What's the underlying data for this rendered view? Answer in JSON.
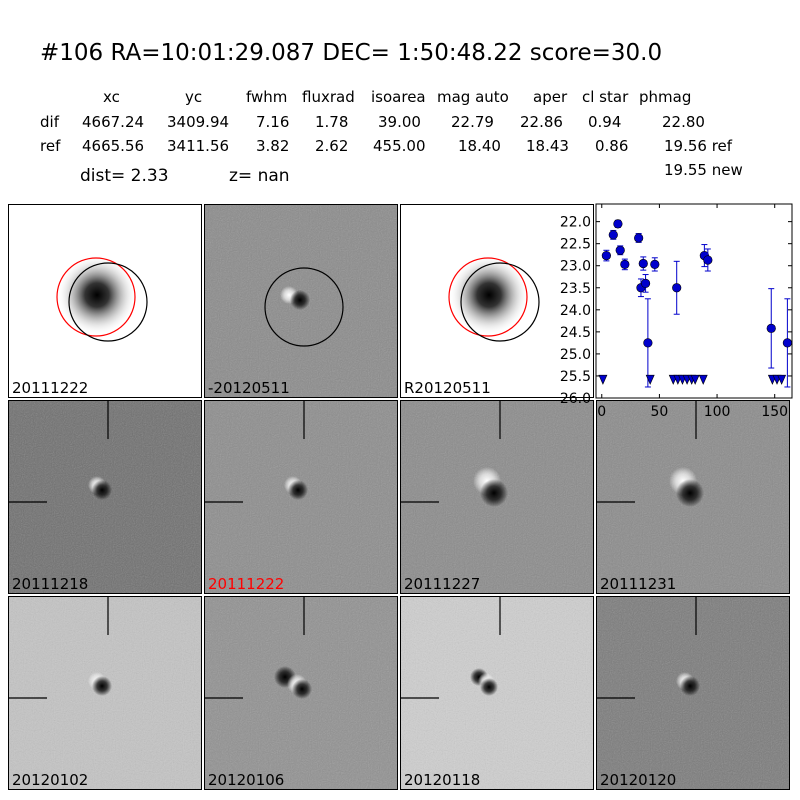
{
  "header": {
    "title": "#106   RA=10:01:29.087 DEC= 1:50:48.22       score=30.0",
    "columns": [
      "xc",
      "yc",
      "fwhm",
      "fluxrad",
      "isoarea",
      "mag auto",
      "aper",
      "cl star",
      "phmag"
    ],
    "rows": [
      {
        "label": "dif",
        "values": [
          "4667.24",
          "3409.94",
          "7.16",
          "1.78",
          "39.00",
          "22.79",
          "22.86",
          "0.94",
          "22.80"
        ]
      },
      {
        "label": "ref",
        "values": [
          "4665.56",
          "3411.56",
          "3.82",
          "2.62",
          "455.00",
          "18.40",
          "18.43",
          "0.86",
          "19.56 ref"
        ]
      }
    ],
    "extra_phmag": "19.55 new",
    "dist_text": "dist=  2.33",
    "z_text": "z=   nan"
  },
  "panels": [
    {
      "label": "20111222",
      "bg": "#ffffff",
      "kind": "ref",
      "label_color": "#000000"
    },
    {
      "label": "-20120511",
      "bg": "#8a8a8a",
      "kind": "diff1",
      "label_color": "#000000"
    },
    {
      "label": "R20120511",
      "bg": "#ffffff",
      "kind": "ref",
      "label_color": "#000000"
    },
    {
      "label": "20111218",
      "bg": "#6e6e6e",
      "kind": "epoch",
      "label_color": "#000000"
    },
    {
      "label": "20111222",
      "bg": "#8c8c8c",
      "kind": "epoch",
      "label_color": "#ff0000"
    },
    {
      "label": "20111227",
      "bg": "#8a8a8a",
      "kind": "epoch2",
      "label_color": "#000000"
    },
    {
      "label": "20111231",
      "bg": "#8a8a8a",
      "kind": "epoch2",
      "label_color": "#000000"
    },
    {
      "label": "20120102",
      "bg": "#c4c4c4",
      "kind": "epoch",
      "label_color": "#000000"
    },
    {
      "label": "20120106",
      "bg": "#909090",
      "kind": "epoch3",
      "label_color": "#000000"
    },
    {
      "label": "20120118",
      "bg": "#cfcfcf",
      "kind": "epoch4",
      "label_color": "#000000"
    },
    {
      "label": "20120120",
      "bg": "#7a7a7a",
      "kind": "epoch",
      "label_color": "#000000"
    }
  ],
  "chart_data": {
    "type": "scatter",
    "title": "",
    "xlabel": "",
    "ylabel": "",
    "xlim": [
      -5,
      165
    ],
    "ylim": [
      26.0,
      21.6
    ],
    "xticks": [
      0,
      50,
      100,
      150
    ],
    "yticks": [
      22.0,
      22.5,
      23.0,
      23.5,
      24.0,
      24.5,
      25.0,
      25.5,
      26.0
    ],
    "ytick_labels": [
      "22.0",
      "22.5",
      "23.0",
      "23.5",
      "24.0",
      "24.5",
      "25.0",
      "25.5",
      "26.0"
    ],
    "color": "#0000cc",
    "grid": false,
    "detections": [
      {
        "x": 4,
        "y": 22.77,
        "err": 0.12
      },
      {
        "x": 10,
        "y": 22.3,
        "err": 0.1
      },
      {
        "x": 14,
        "y": 22.05,
        "err": 0.08
      },
      {
        "x": 16,
        "y": 22.65,
        "err": 0.1
      },
      {
        "x": 20,
        "y": 22.97,
        "err": 0.12
      },
      {
        "x": 32,
        "y": 22.37,
        "err": 0.1
      },
      {
        "x": 34,
        "y": 23.5,
        "err": 0.2
      },
      {
        "x": 36,
        "y": 22.95,
        "err": 0.15
      },
      {
        "x": 38,
        "y": 23.4,
        "err": 0.2
      },
      {
        "x": 40,
        "y": 24.75,
        "err": 1.0
      },
      {
        "x": 46,
        "y": 22.97,
        "err": 0.15
      },
      {
        "x": 65,
        "y": 23.5,
        "err": 0.6
      },
      {
        "x": 89,
        "y": 22.77,
        "err": 0.25
      },
      {
        "x": 92,
        "y": 22.87,
        "err": 0.25
      },
      {
        "x": 147,
        "y": 24.42,
        "err": 0.9
      },
      {
        "x": 161,
        "y": 24.75,
        "err": 1.0
      }
    ],
    "upper_limits": [
      {
        "x": 1,
        "y": 25.55
      },
      {
        "x": 42,
        "y": 25.55
      },
      {
        "x": 62,
        "y": 25.55
      },
      {
        "x": 66,
        "y": 25.55
      },
      {
        "x": 70,
        "y": 25.55
      },
      {
        "x": 74,
        "y": 25.55
      },
      {
        "x": 78,
        "y": 25.55
      },
      {
        "x": 81,
        "y": 25.55
      },
      {
        "x": 88,
        "y": 25.55
      },
      {
        "x": 148,
        "y": 25.55
      },
      {
        "x": 152,
        "y": 25.55
      },
      {
        "x": 156,
        "y": 25.55
      }
    ]
  }
}
